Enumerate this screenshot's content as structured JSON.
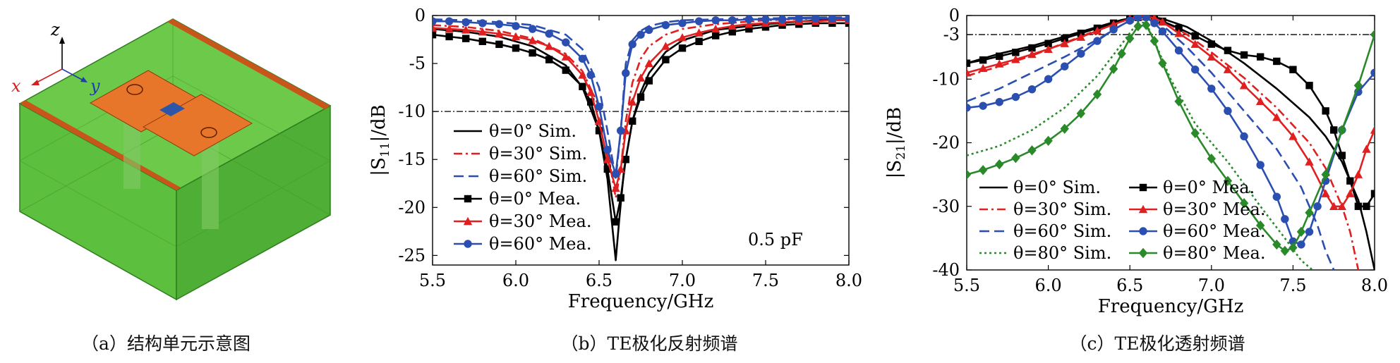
{
  "captions": {
    "a": "（a）结构单元示意图",
    "b": "（b）TE极化反射频谱",
    "c": "（c）TE极化透射频谱"
  },
  "diagram": {
    "axes": {
      "z": "z",
      "x": "x",
      "y": "y"
    },
    "colors": {
      "substrate": "#5cbf3e",
      "substrate_edge": "#2f7d1f",
      "patch": "#e8762a",
      "gap": "#2e56a8",
      "strip": "#c8561a"
    }
  },
  "chart_data": [
    {
      "type": "line",
      "xlabel": "Frequency/GHz",
      "ylabel": "|S11|/dB",
      "xlim": [
        5.5,
        8.0
      ],
      "ylim": [
        -26,
        0
      ],
      "xticks": [
        "5.5",
        "6.0",
        "6.5",
        "7.0",
        "7.5",
        "8.0"
      ],
      "yticks": [
        "0",
        "-5",
        "-10",
        "-15",
        "-20",
        "-25"
      ],
      "annotation": "0.5 pF",
      "reference_line": -10,
      "legend_position": "left",
      "grid": false,
      "series": [
        {
          "name": "θ=0° Sim.",
          "color": "#000000",
          "dash": "solid",
          "marker": "none",
          "x": [
            5.5,
            5.7,
            5.9,
            6.1,
            6.3,
            6.4,
            6.5,
            6.55,
            6.6,
            6.62,
            6.65,
            6.7,
            6.75,
            6.8,
            6.9,
            7.0,
            7.2,
            7.5,
            7.8,
            8.0
          ],
          "y": [
            -1.4,
            -1.7,
            -2.2,
            -3.2,
            -5.2,
            -7.5,
            -12,
            -17,
            -25.5,
            -21.5,
            -16,
            -11,
            -8,
            -6,
            -3.8,
            -2.6,
            -1.5,
            -0.9,
            -0.5,
            -0.4
          ]
        },
        {
          "name": "θ=30° Sim.",
          "color": "#e02020",
          "dash": "dashdot",
          "marker": "none",
          "x": [
            5.5,
            5.7,
            5.9,
            6.1,
            6.3,
            6.4,
            6.5,
            6.55,
            6.6,
            6.63,
            6.66,
            6.7,
            6.75,
            6.8,
            6.9,
            7.0,
            7.2,
            7.5,
            7.8,
            8.0
          ],
          "y": [
            -1.0,
            -1.2,
            -1.6,
            -2.4,
            -4.0,
            -5.8,
            -9.5,
            -14,
            -19,
            -16,
            -11,
            -7,
            -4.5,
            -3.2,
            -2.0,
            -1.4,
            -0.9,
            -0.5,
            -0.3,
            -0.3
          ]
        },
        {
          "name": "θ=60° Sim.",
          "color": "#2a4fb0",
          "dash": "dash",
          "marker": "none",
          "x": [
            5.5,
            5.7,
            5.9,
            6.1,
            6.3,
            6.4,
            6.5,
            6.55,
            6.6,
            6.63,
            6.66,
            6.7,
            6.75,
            6.8,
            6.9,
            7.0,
            7.2,
            7.5,
            7.8,
            8.0
          ],
          "y": [
            -0.4,
            -0.5,
            -0.7,
            -1.0,
            -2.0,
            -3.5,
            -7.5,
            -12,
            -17,
            -12,
            -5,
            -2.6,
            -1.6,
            -1.1,
            -0.7,
            -0.5,
            -0.4,
            -0.3,
            -0.2,
            -0.2
          ]
        },
        {
          "name": "θ=0° Mea.",
          "color": "#000000",
          "dash": "solid",
          "marker": "square",
          "x": [
            5.5,
            5.6,
            5.7,
            5.8,
            5.9,
            6.0,
            6.1,
            6.2,
            6.3,
            6.4,
            6.45,
            6.5,
            6.55,
            6.6,
            6.63,
            6.66,
            6.7,
            6.75,
            6.8,
            6.9,
            7.0,
            7.1,
            7.2,
            7.3,
            7.4,
            7.5,
            7.6,
            7.7,
            7.8,
            7.9,
            8.0
          ],
          "y": [
            -2.0,
            -2.2,
            -2.4,
            -2.7,
            -3.0,
            -3.4,
            -3.9,
            -4.6,
            -5.7,
            -7.4,
            -9.0,
            -12,
            -16,
            -21.5,
            -19,
            -15,
            -11,
            -8.5,
            -6.8,
            -4.6,
            -3.4,
            -2.7,
            -2.1,
            -1.7,
            -1.4,
            -1.2,
            -1.0,
            -0.9,
            -0.8,
            -0.8,
            -0.8
          ]
        },
        {
          "name": "θ=30° Mea.",
          "color": "#e02020",
          "dash": "solid",
          "marker": "triangle",
          "x": [
            5.5,
            5.6,
            5.7,
            5.8,
            5.9,
            6.0,
            6.1,
            6.2,
            6.3,
            6.4,
            6.45,
            6.5,
            6.55,
            6.6,
            6.63,
            6.66,
            6.7,
            6.75,
            6.8,
            6.9,
            7.0,
            7.1,
            7.2,
            7.3,
            7.4,
            7.5,
            7.6,
            7.7,
            7.8,
            7.9,
            8.0
          ],
          "y": [
            -1.3,
            -1.4,
            -1.5,
            -1.7,
            -1.9,
            -2.2,
            -2.6,
            -3.2,
            -4.3,
            -6.2,
            -8.0,
            -11,
            -15,
            -18,
            -16,
            -12,
            -9,
            -6.5,
            -5.0,
            -3.2,
            -2.3,
            -1.8,
            -1.4,
            -1.1,
            -0.9,
            -0.8,
            -0.7,
            -0.6,
            -0.6,
            -0.5,
            -0.5
          ]
        },
        {
          "name": "θ=60° Mea.",
          "color": "#2a4fb0",
          "dash": "solid",
          "marker": "circle",
          "x": [
            5.5,
            5.6,
            5.7,
            5.8,
            5.9,
            6.0,
            6.1,
            6.2,
            6.3,
            6.4,
            6.45,
            6.5,
            6.55,
            6.6,
            6.63,
            6.66,
            6.7,
            6.75,
            6.8,
            6.9,
            7.0,
            7.1,
            7.2,
            7.3,
            7.4,
            7.5,
            7.6,
            7.7,
            7.8,
            7.9,
            8.0
          ],
          "y": [
            -0.6,
            -0.6,
            -0.7,
            -0.8,
            -0.9,
            -1.1,
            -1.4,
            -1.9,
            -2.8,
            -4.5,
            -6.2,
            -9.5,
            -14,
            -16.5,
            -12,
            -6,
            -3.0,
            -2.0,
            -1.5,
            -1.0,
            -0.8,
            -0.6,
            -0.5,
            -0.5,
            -0.4,
            -0.4,
            -0.4,
            -0.3,
            -0.3,
            -0.3,
            -0.3
          ]
        }
      ]
    },
    {
      "type": "line",
      "xlabel": "Frequency/GHz",
      "ylabel": "|S21|/dB",
      "xlim": [
        5.5,
        8.0
      ],
      "ylim": [
        -40,
        0
      ],
      "xticks": [
        "5.5",
        "6.0",
        "6.5",
        "7.0",
        "7.5",
        "8.0"
      ],
      "yticks": [
        "0",
        "-3",
        "-10",
        "-20",
        "-30",
        "-40"
      ],
      "reference_line": -3,
      "legend_position": "bottom-left",
      "grid": false,
      "series": [
        {
          "name": "θ=0° Sim.",
          "color": "#000000",
          "dash": "solid",
          "marker": "none",
          "x": [
            5.5,
            5.7,
            5.9,
            6.1,
            6.3,
            6.45,
            6.55,
            6.6,
            6.7,
            6.85,
            7.0,
            7.2,
            7.4,
            7.6,
            7.7,
            7.8,
            7.9,
            7.95,
            8.0
          ],
          "y": [
            -7.5,
            -6.0,
            -4.8,
            -3.3,
            -1.8,
            -0.7,
            -0.2,
            -0.1,
            -0.5,
            -1.8,
            -4.0,
            -7.5,
            -11.5,
            -16,
            -19,
            -23,
            -29,
            -34,
            -40
          ]
        },
        {
          "name": "θ=30° Sim.",
          "color": "#e02020",
          "dash": "dashdot",
          "marker": "none",
          "x": [
            5.5,
            5.7,
            5.9,
            6.1,
            6.3,
            6.45,
            6.55,
            6.6,
            6.7,
            6.85,
            7.0,
            7.2,
            7.4,
            7.6,
            7.7,
            7.8,
            7.85,
            7.9
          ],
          "y": [
            -9.5,
            -8.0,
            -6.3,
            -4.3,
            -2.3,
            -0.9,
            -0.2,
            -0.1,
            -0.8,
            -3.0,
            -5.8,
            -9.8,
            -14.5,
            -20,
            -24,
            -30,
            -34,
            -40
          ]
        },
        {
          "name": "θ=60° Sim.",
          "color": "#2a4fb0",
          "dash": "dash",
          "marker": "none",
          "x": [
            5.5,
            5.7,
            5.9,
            6.1,
            6.3,
            6.45,
            6.55,
            6.6,
            6.7,
            6.85,
            7.0,
            7.2,
            7.4,
            7.55,
            7.65,
            7.7,
            7.75
          ],
          "y": [
            -13.5,
            -11.5,
            -9.0,
            -6.5,
            -3.8,
            -1.5,
            -0.3,
            -0.2,
            -1.5,
            -5.0,
            -9.0,
            -15,
            -21,
            -27,
            -33,
            -37,
            -40
          ]
        },
        {
          "name": "θ=80° Sim.",
          "color": "#2a8a2a",
          "dash": "dot",
          "marker": "none",
          "x": [
            5.5,
            5.7,
            5.9,
            6.1,
            6.3,
            6.45,
            6.55,
            6.6,
            6.65,
            6.75,
            6.9,
            7.1,
            7.3,
            7.45,
            7.55,
            7.62
          ],
          "y": [
            -22,
            -20.5,
            -18,
            -14.5,
            -9.5,
            -4.5,
            -1.0,
            -1.2,
            -4.0,
            -10,
            -17,
            -23,
            -30,
            -35,
            -38.5,
            -40
          ]
        },
        {
          "name": "θ=0° Mea.",
          "color": "#000000",
          "dash": "solid",
          "marker": "square",
          "x": [
            5.5,
            5.6,
            5.7,
            5.8,
            5.9,
            6.0,
            6.1,
            6.2,
            6.3,
            6.4,
            6.5,
            6.55,
            6.6,
            6.65,
            6.7,
            6.8,
            6.9,
            7.0,
            7.1,
            7.2,
            7.3,
            7.4,
            7.5,
            7.6,
            7.7,
            7.75,
            7.8,
            7.85,
            7.9,
            7.95,
            8.0
          ],
          "y": [
            -7.5,
            -7.0,
            -6.4,
            -5.8,
            -5.1,
            -4.4,
            -3.6,
            -2.8,
            -2.0,
            -1.2,
            -0.5,
            -0.3,
            -0.2,
            -0.4,
            -0.9,
            -2.0,
            -3.2,
            -4.5,
            -5.5,
            -6.2,
            -6.5,
            -7.2,
            -8.5,
            -11,
            -15,
            -18,
            -22,
            -26,
            -30,
            -30,
            -28
          ]
        },
        {
          "name": "θ=30° Mea.",
          "color": "#e02020",
          "dash": "solid",
          "marker": "triangle",
          "x": [
            5.5,
            5.6,
            5.7,
            5.8,
            5.9,
            6.0,
            6.1,
            6.2,
            6.3,
            6.4,
            6.5,
            6.55,
            6.6,
            6.65,
            6.7,
            6.8,
            6.9,
            7.0,
            7.1,
            7.2,
            7.3,
            7.4,
            7.5,
            7.6,
            7.7,
            7.75,
            7.8,
            7.85,
            7.9,
            7.95,
            8.0
          ],
          "y": [
            -9.0,
            -8.3,
            -7.6,
            -6.9,
            -6.1,
            -5.3,
            -4.4,
            -3.4,
            -2.4,
            -1.4,
            -0.5,
            -0.2,
            -0.1,
            -0.4,
            -1.0,
            -2.8,
            -4.5,
            -6.5,
            -8.5,
            -11,
            -13.5,
            -16,
            -19,
            -23,
            -28,
            -30,
            -30,
            -28,
            -25,
            -21,
            -18
          ]
        },
        {
          "name": "θ=60° Mea.",
          "color": "#2a4fb0",
          "dash": "solid",
          "marker": "circle",
          "x": [
            5.5,
            5.6,
            5.7,
            5.8,
            5.9,
            6.0,
            6.1,
            6.2,
            6.3,
            6.4,
            6.5,
            6.55,
            6.6,
            6.65,
            6.7,
            6.8,
            6.9,
            7.0,
            7.1,
            7.2,
            7.3,
            7.4,
            7.45,
            7.5,
            7.55,
            7.6,
            7.65,
            7.7,
            7.8,
            7.9,
            8.0
          ],
          "y": [
            -14.5,
            -14.2,
            -13.6,
            -12.8,
            -11.6,
            -10,
            -8.0,
            -6.0,
            -4.0,
            -2.2,
            -0.8,
            -0.3,
            -0.3,
            -1.2,
            -2.5,
            -5.5,
            -8.5,
            -11.5,
            -15,
            -19,
            -23.5,
            -28.5,
            -32,
            -35.5,
            -36,
            -34,
            -30,
            -26,
            -18,
            -12,
            -9
          ]
        },
        {
          "name": "θ=80° Mea.",
          "color": "#2a8a2a",
          "dash": "solid",
          "marker": "diamond",
          "x": [
            5.5,
            5.6,
            5.7,
            5.8,
            5.9,
            6.0,
            6.1,
            6.2,
            6.3,
            6.4,
            6.45,
            6.5,
            6.55,
            6.6,
            6.65,
            6.7,
            6.8,
            6.9,
            7.0,
            7.1,
            7.2,
            7.3,
            7.4,
            7.45,
            7.5,
            7.55,
            7.6,
            7.7,
            7.8,
            7.9,
            8.0
          ],
          "y": [
            -25,
            -24.3,
            -23.4,
            -22.4,
            -21.2,
            -19.7,
            -17.8,
            -15.4,
            -12.4,
            -8.4,
            -6.0,
            -3.6,
            -1.7,
            -1.5,
            -4.0,
            -7.5,
            -13.5,
            -18.5,
            -22.5,
            -26,
            -29.5,
            -33,
            -36,
            -37,
            -36.5,
            -34,
            -31,
            -25,
            -18,
            -11,
            -3
          ]
        }
      ]
    }
  ]
}
